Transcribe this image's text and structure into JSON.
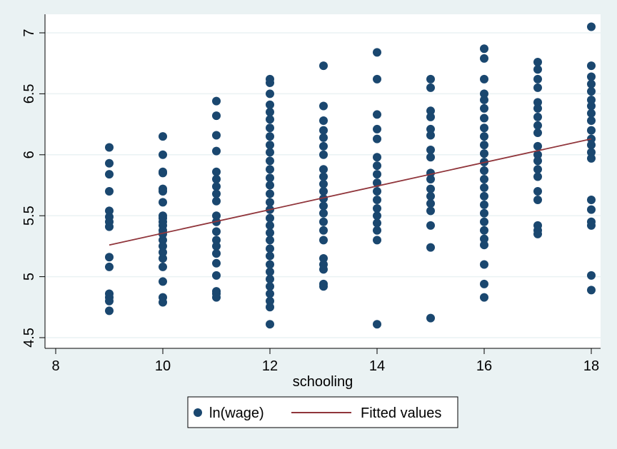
{
  "chart_data": {
    "type": "scatter",
    "title": "",
    "xlabel": "schooling",
    "ylabel": "",
    "xlim": [
      8,
      18
    ],
    "ylim": [
      4.5,
      7
    ],
    "xticks": [
      "8",
      "10",
      "12",
      "14",
      "16",
      "18"
    ],
    "yticks": [
      "4.5",
      "5",
      "5.5",
      "6",
      "6.5",
      "7"
    ],
    "grid": true,
    "legend_position": "bottom",
    "series": [
      {
        "name": "ln(wage)",
        "type": "scatter",
        "color": "#1a476f",
        "points": [
          [
            9,
            6.06
          ],
          [
            9,
            5.93
          ],
          [
            9,
            5.84
          ],
          [
            9,
            5.7
          ],
          [
            9,
            5.54
          ],
          [
            9,
            5.49
          ],
          [
            9,
            5.45
          ],
          [
            9,
            5.41
          ],
          [
            9,
            5.16
          ],
          [
            9,
            5.08
          ],
          [
            9,
            4.86
          ],
          [
            9,
            4.83
          ],
          [
            9,
            4.8
          ],
          [
            9,
            4.72
          ],
          [
            10,
            6.15
          ],
          [
            10,
            6.0
          ],
          [
            10,
            5.86
          ],
          [
            10,
            5.85
          ],
          [
            10,
            5.72
          ],
          [
            10,
            5.7
          ],
          [
            10,
            5.61
          ],
          [
            10,
            5.5
          ],
          [
            10,
            5.48
          ],
          [
            10,
            5.45
          ],
          [
            10,
            5.42
          ],
          [
            10,
            5.38
          ],
          [
            10,
            5.35
          ],
          [
            10,
            5.3
          ],
          [
            10,
            5.25
          ],
          [
            10,
            5.2
          ],
          [
            10,
            5.15
          ],
          [
            10,
            5.08
          ],
          [
            10,
            4.96
          ],
          [
            10,
            4.83
          ],
          [
            10,
            4.79
          ],
          [
            11,
            6.44
          ],
          [
            11,
            6.32
          ],
          [
            11,
            6.16
          ],
          [
            11,
            6.03
          ],
          [
            11,
            5.86
          ],
          [
            11,
            5.8
          ],
          [
            11,
            5.74
          ],
          [
            11,
            5.68
          ],
          [
            11,
            5.62
          ],
          [
            11,
            5.5
          ],
          [
            11,
            5.45
          ],
          [
            11,
            5.37
          ],
          [
            11,
            5.3
          ],
          [
            11,
            5.25
          ],
          [
            11,
            5.19
          ],
          [
            11,
            5.11
          ],
          [
            11,
            5.01
          ],
          [
            11,
            4.88
          ],
          [
            11,
            4.86
          ],
          [
            11,
            4.83
          ],
          [
            12,
            6.62
          ],
          [
            12,
            6.59
          ],
          [
            12,
            6.5
          ],
          [
            12,
            6.41
          ],
          [
            12,
            6.35
          ],
          [
            12,
            6.29
          ],
          [
            12,
            6.22
          ],
          [
            12,
            6.15
          ],
          [
            12,
            6.08
          ],
          [
            12,
            6.02
          ],
          [
            12,
            5.95
          ],
          [
            12,
            5.88
          ],
          [
            12,
            5.81
          ],
          [
            12,
            5.75
          ],
          [
            12,
            5.68
          ],
          [
            12,
            5.61
          ],
          [
            12,
            5.55
          ],
          [
            12,
            5.48
          ],
          [
            12,
            5.42
          ],
          [
            12,
            5.36
          ],
          [
            12,
            5.3
          ],
          [
            12,
            5.23
          ],
          [
            12,
            5.17
          ],
          [
            12,
            5.1
          ],
          [
            12,
            5.04
          ],
          [
            12,
            4.98
          ],
          [
            12,
            4.92
          ],
          [
            12,
            4.86
          ],
          [
            12,
            4.8
          ],
          [
            12,
            4.75
          ],
          [
            12,
            4.61
          ],
          [
            13,
            6.73
          ],
          [
            13,
            6.4
          ],
          [
            13,
            6.28
          ],
          [
            13,
            6.2
          ],
          [
            13,
            6.14
          ],
          [
            13,
            6.07
          ],
          [
            13,
            6.0
          ],
          [
            13,
            5.88
          ],
          [
            13,
            5.82
          ],
          [
            13,
            5.76
          ],
          [
            13,
            5.7
          ],
          [
            13,
            5.64
          ],
          [
            13,
            5.58
          ],
          [
            13,
            5.52
          ],
          [
            13,
            5.45
          ],
          [
            13,
            5.38
          ],
          [
            13,
            5.3
          ],
          [
            13,
            5.15
          ],
          [
            13,
            5.1
          ],
          [
            13,
            5.06
          ],
          [
            13,
            4.94
          ],
          [
            13,
            4.92
          ],
          [
            14,
            6.84
          ],
          [
            14,
            6.62
          ],
          [
            14,
            6.33
          ],
          [
            14,
            6.21
          ],
          [
            14,
            6.13
          ],
          [
            14,
            5.98
          ],
          [
            14,
            5.91
          ],
          [
            14,
            5.84
          ],
          [
            14,
            5.77
          ],
          [
            14,
            5.7
          ],
          [
            14,
            5.63
          ],
          [
            14,
            5.56
          ],
          [
            14,
            5.5
          ],
          [
            14,
            5.44
          ],
          [
            14,
            5.38
          ],
          [
            14,
            5.3
          ],
          [
            14,
            4.61
          ],
          [
            15,
            6.62
          ],
          [
            15,
            6.55
          ],
          [
            15,
            6.36
          ],
          [
            15,
            6.31
          ],
          [
            15,
            6.21
          ],
          [
            15,
            6.16
          ],
          [
            15,
            6.04
          ],
          [
            15,
            5.98
          ],
          [
            15,
            5.85
          ],
          [
            15,
            5.8
          ],
          [
            15,
            5.72
          ],
          [
            15,
            5.66
          ],
          [
            15,
            5.6
          ],
          [
            15,
            5.54
          ],
          [
            15,
            5.42
          ],
          [
            15,
            5.24
          ],
          [
            15,
            4.66
          ],
          [
            16,
            6.87
          ],
          [
            16,
            6.79
          ],
          [
            16,
            6.62
          ],
          [
            16,
            6.5
          ],
          [
            16,
            6.45
          ],
          [
            16,
            6.38
          ],
          [
            16,
            6.3
          ],
          [
            16,
            6.22
          ],
          [
            16,
            6.15
          ],
          [
            16,
            6.08
          ],
          [
            16,
            6.01
          ],
          [
            16,
            5.94
          ],
          [
            16,
            5.87
          ],
          [
            16,
            5.8
          ],
          [
            16,
            5.73
          ],
          [
            16,
            5.66
          ],
          [
            16,
            5.59
          ],
          [
            16,
            5.52
          ],
          [
            16,
            5.45
          ],
          [
            16,
            5.38
          ],
          [
            16,
            5.31
          ],
          [
            16,
            5.26
          ],
          [
            16,
            5.1
          ],
          [
            16,
            4.94
          ],
          [
            16,
            4.83
          ],
          [
            17,
            6.76
          ],
          [
            17,
            6.7
          ],
          [
            17,
            6.62
          ],
          [
            17,
            6.55
          ],
          [
            17,
            6.43
          ],
          [
            17,
            6.38
          ],
          [
            17,
            6.31
          ],
          [
            17,
            6.24
          ],
          [
            17,
            6.18
          ],
          [
            17,
            6.07
          ],
          [
            17,
            6.0
          ],
          [
            17,
            5.95
          ],
          [
            17,
            5.88
          ],
          [
            17,
            5.82
          ],
          [
            17,
            5.7
          ],
          [
            17,
            5.63
          ],
          [
            17,
            5.42
          ],
          [
            17,
            5.38
          ],
          [
            17,
            5.35
          ],
          [
            18,
            7.05
          ],
          [
            18,
            6.73
          ],
          [
            18,
            6.64
          ],
          [
            18,
            6.58
          ],
          [
            18,
            6.52
          ],
          [
            18,
            6.45
          ],
          [
            18,
            6.4
          ],
          [
            18,
            6.34
          ],
          [
            18,
            6.28
          ],
          [
            18,
            6.2
          ],
          [
            18,
            6.13
          ],
          [
            18,
            6.08
          ],
          [
            18,
            6.02
          ],
          [
            18,
            5.97
          ],
          [
            18,
            5.63
          ],
          [
            18,
            5.55
          ],
          [
            18,
            5.45
          ],
          [
            18,
            5.42
          ],
          [
            18,
            5.01
          ],
          [
            18,
            4.89
          ]
        ]
      },
      {
        "name": "Fitted values",
        "type": "line",
        "color": "#90353b",
        "points": [
          [
            9,
            5.26
          ],
          [
            18,
            6.13
          ]
        ]
      }
    ]
  }
}
